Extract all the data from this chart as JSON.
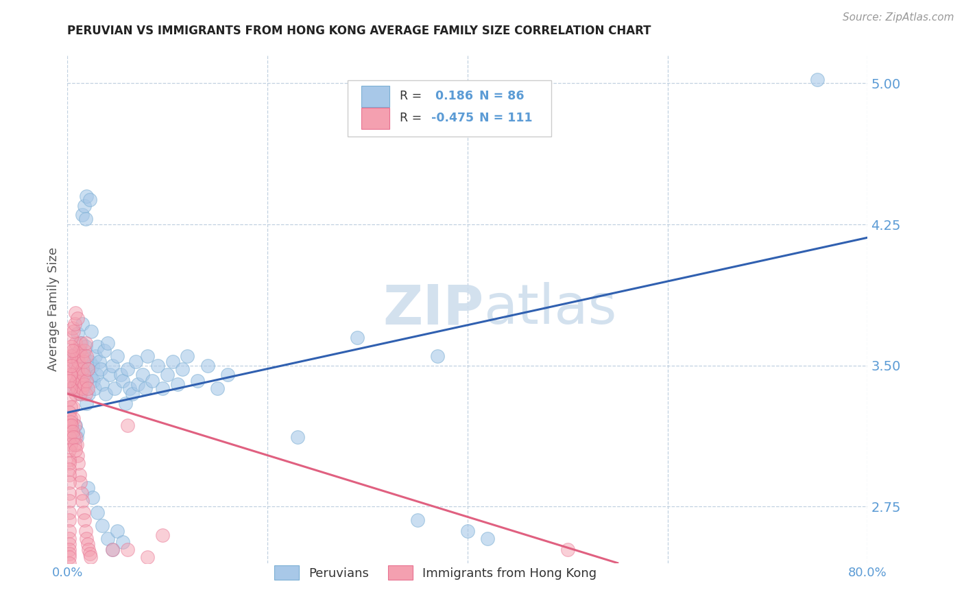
{
  "title": "PERUVIAN VS IMMIGRANTS FROM HONG KONG AVERAGE FAMILY SIZE CORRELATION CHART",
  "source": "Source: ZipAtlas.com",
  "ylabel": "Average Family Size",
  "xmin": 0.0,
  "xmax": 0.8,
  "ymin": 2.45,
  "ymax": 5.15,
  "yticks": [
    2.75,
    3.5,
    4.25,
    5.0
  ],
  "xticks": [
    0.0,
    0.2,
    0.4,
    0.6,
    0.8
  ],
  "xtick_labels": [
    "0.0%",
    "",
    "",
    "",
    "80.0%"
  ],
  "blue_R": 0.186,
  "blue_N": 86,
  "pink_R": -0.475,
  "pink_N": 111,
  "blue_color": "#a8c8e8",
  "pink_color": "#f4a0b0",
  "blue_edge_color": "#7bafd4",
  "pink_edge_color": "#e87090",
  "blue_line_color": "#3060b0",
  "pink_line_color": "#e06080",
  "watermark_color": "#ccdcec",
  "axis_color": "#5b9bd5",
  "title_color": "#222222",
  "blue_line_x": [
    0.0,
    0.8
  ],
  "blue_line_y": [
    3.25,
    4.18
  ],
  "pink_line_x": [
    0.0,
    0.55
  ],
  "pink_line_y": [
    3.35,
    2.45
  ],
  "blue_scatter": [
    [
      0.005,
      3.38
    ],
    [
      0.007,
      3.56
    ],
    [
      0.008,
      3.5
    ],
    [
      0.009,
      3.42
    ],
    [
      0.01,
      3.67
    ],
    [
      0.01,
      3.55
    ],
    [
      0.011,
      3.48
    ],
    [
      0.012,
      3.35
    ],
    [
      0.013,
      3.58
    ],
    [
      0.013,
      3.43
    ],
    [
      0.014,
      3.62
    ],
    [
      0.015,
      3.4
    ],
    [
      0.015,
      3.72
    ],
    [
      0.016,
      3.38
    ],
    [
      0.017,
      3.55
    ],
    [
      0.018,
      3.45
    ],
    [
      0.018,
      3.6
    ],
    [
      0.019,
      3.3
    ],
    [
      0.02,
      3.48
    ],
    [
      0.021,
      3.35
    ],
    [
      0.022,
      3.52
    ],
    [
      0.023,
      3.44
    ],
    [
      0.024,
      3.68
    ],
    [
      0.025,
      3.5
    ],
    [
      0.026,
      3.42
    ],
    [
      0.027,
      3.38
    ],
    [
      0.028,
      3.55
    ],
    [
      0.029,
      3.45
    ],
    [
      0.03,
      3.6
    ],
    [
      0.032,
      3.52
    ],
    [
      0.033,
      3.48
    ],
    [
      0.035,
      3.4
    ],
    [
      0.037,
      3.58
    ],
    [
      0.038,
      3.35
    ],
    [
      0.04,
      3.62
    ],
    [
      0.042,
      3.45
    ],
    [
      0.045,
      3.5
    ],
    [
      0.047,
      3.38
    ],
    [
      0.05,
      3.55
    ],
    [
      0.053,
      3.45
    ],
    [
      0.055,
      3.42
    ],
    [
      0.058,
      3.3
    ],
    [
      0.06,
      3.48
    ],
    [
      0.062,
      3.38
    ],
    [
      0.065,
      3.35
    ],
    [
      0.068,
      3.52
    ],
    [
      0.07,
      3.4
    ],
    [
      0.075,
      3.45
    ],
    [
      0.078,
      3.38
    ],
    [
      0.08,
      3.55
    ],
    [
      0.085,
      3.42
    ],
    [
      0.09,
      3.5
    ],
    [
      0.095,
      3.38
    ],
    [
      0.1,
      3.45
    ],
    [
      0.105,
      3.52
    ],
    [
      0.11,
      3.4
    ],
    [
      0.115,
      3.48
    ],
    [
      0.12,
      3.55
    ],
    [
      0.13,
      3.42
    ],
    [
      0.14,
      3.5
    ],
    [
      0.15,
      3.38
    ],
    [
      0.16,
      3.45
    ],
    [
      0.015,
      4.3
    ],
    [
      0.017,
      4.35
    ],
    [
      0.018,
      4.28
    ],
    [
      0.019,
      4.4
    ],
    [
      0.022,
      4.38
    ],
    [
      0.008,
      3.18
    ],
    [
      0.009,
      3.12
    ],
    [
      0.01,
      3.15
    ],
    [
      0.02,
      2.85
    ],
    [
      0.025,
      2.8
    ],
    [
      0.03,
      2.72
    ],
    [
      0.035,
      2.65
    ],
    [
      0.04,
      2.58
    ],
    [
      0.045,
      2.52
    ],
    [
      0.05,
      2.62
    ],
    [
      0.055,
      2.56
    ],
    [
      0.4,
      2.62
    ],
    [
      0.42,
      2.58
    ],
    [
      0.75,
      5.02
    ],
    [
      0.29,
      3.65
    ],
    [
      0.37,
      3.55
    ],
    [
      0.23,
      3.12
    ],
    [
      0.35,
      2.68
    ]
  ],
  "pink_scatter": [
    [
      0.003,
      3.5
    ],
    [
      0.004,
      3.55
    ],
    [
      0.004,
      3.42
    ],
    [
      0.005,
      3.48
    ],
    [
      0.005,
      3.38
    ],
    [
      0.006,
      3.52
    ],
    [
      0.006,
      3.45
    ],
    [
      0.007,
      3.58
    ],
    [
      0.007,
      3.4
    ],
    [
      0.008,
      3.62
    ],
    [
      0.008,
      3.35
    ],
    [
      0.009,
      3.55
    ],
    [
      0.009,
      3.42
    ],
    [
      0.01,
      3.48
    ],
    [
      0.01,
      3.38
    ],
    [
      0.011,
      3.52
    ],
    [
      0.011,
      3.45
    ],
    [
      0.012,
      3.58
    ],
    [
      0.012,
      3.4
    ],
    [
      0.013,
      3.62
    ],
    [
      0.013,
      3.35
    ],
    [
      0.014,
      3.55
    ],
    [
      0.014,
      3.42
    ],
    [
      0.015,
      3.48
    ],
    [
      0.015,
      3.38
    ],
    [
      0.016,
      3.52
    ],
    [
      0.016,
      3.45
    ],
    [
      0.017,
      3.58
    ],
    [
      0.017,
      3.4
    ],
    [
      0.018,
      3.62
    ],
    [
      0.018,
      3.35
    ],
    [
      0.019,
      3.55
    ],
    [
      0.019,
      3.42
    ],
    [
      0.02,
      3.48
    ],
    [
      0.02,
      3.38
    ],
    [
      0.004,
      3.65
    ],
    [
      0.005,
      3.7
    ],
    [
      0.006,
      3.68
    ],
    [
      0.007,
      3.72
    ],
    [
      0.005,
      3.28
    ],
    [
      0.006,
      3.22
    ],
    [
      0.007,
      3.18
    ],
    [
      0.008,
      3.12
    ],
    [
      0.009,
      3.08
    ],
    [
      0.01,
      3.02
    ],
    [
      0.011,
      2.98
    ],
    [
      0.012,
      2.92
    ],
    [
      0.013,
      2.88
    ],
    [
      0.014,
      2.82
    ],
    [
      0.015,
      2.78
    ],
    [
      0.016,
      2.72
    ],
    [
      0.017,
      2.68
    ],
    [
      0.018,
      2.62
    ],
    [
      0.019,
      2.58
    ],
    [
      0.02,
      2.55
    ],
    [
      0.021,
      2.52
    ],
    [
      0.022,
      2.5
    ],
    [
      0.023,
      2.48
    ],
    [
      0.003,
      3.55
    ],
    [
      0.004,
      3.6
    ],
    [
      0.005,
      3.58
    ],
    [
      0.003,
      3.45
    ],
    [
      0.004,
      3.5
    ],
    [
      0.003,
      3.38
    ],
    [
      0.002,
      3.42
    ],
    [
      0.002,
      3.32
    ],
    [
      0.003,
      3.28
    ],
    [
      0.002,
      3.25
    ],
    [
      0.003,
      3.22
    ],
    [
      0.002,
      3.18
    ],
    [
      0.003,
      3.15
    ],
    [
      0.002,
      3.12
    ],
    [
      0.003,
      3.08
    ],
    [
      0.002,
      3.05
    ],
    [
      0.002,
      3.0
    ],
    [
      0.002,
      2.98
    ],
    [
      0.002,
      2.95
    ],
    [
      0.002,
      2.92
    ],
    [
      0.002,
      2.88
    ],
    [
      0.002,
      2.82
    ],
    [
      0.002,
      2.78
    ],
    [
      0.002,
      2.72
    ],
    [
      0.002,
      2.68
    ],
    [
      0.002,
      2.62
    ],
    [
      0.002,
      2.58
    ],
    [
      0.002,
      2.55
    ],
    [
      0.002,
      2.52
    ],
    [
      0.002,
      2.5
    ],
    [
      0.002,
      2.48
    ],
    [
      0.002,
      2.45
    ],
    [
      0.003,
      3.2
    ],
    [
      0.004,
      3.18
    ],
    [
      0.005,
      3.15
    ],
    [
      0.006,
      3.12
    ],
    [
      0.007,
      3.08
    ],
    [
      0.008,
      3.05
    ],
    [
      0.06,
      2.52
    ],
    [
      0.08,
      2.48
    ],
    [
      0.045,
      2.52
    ],
    [
      0.095,
      2.6
    ],
    [
      0.008,
      3.78
    ],
    [
      0.01,
      3.75
    ],
    [
      0.06,
      3.18
    ],
    [
      0.5,
      2.52
    ]
  ]
}
